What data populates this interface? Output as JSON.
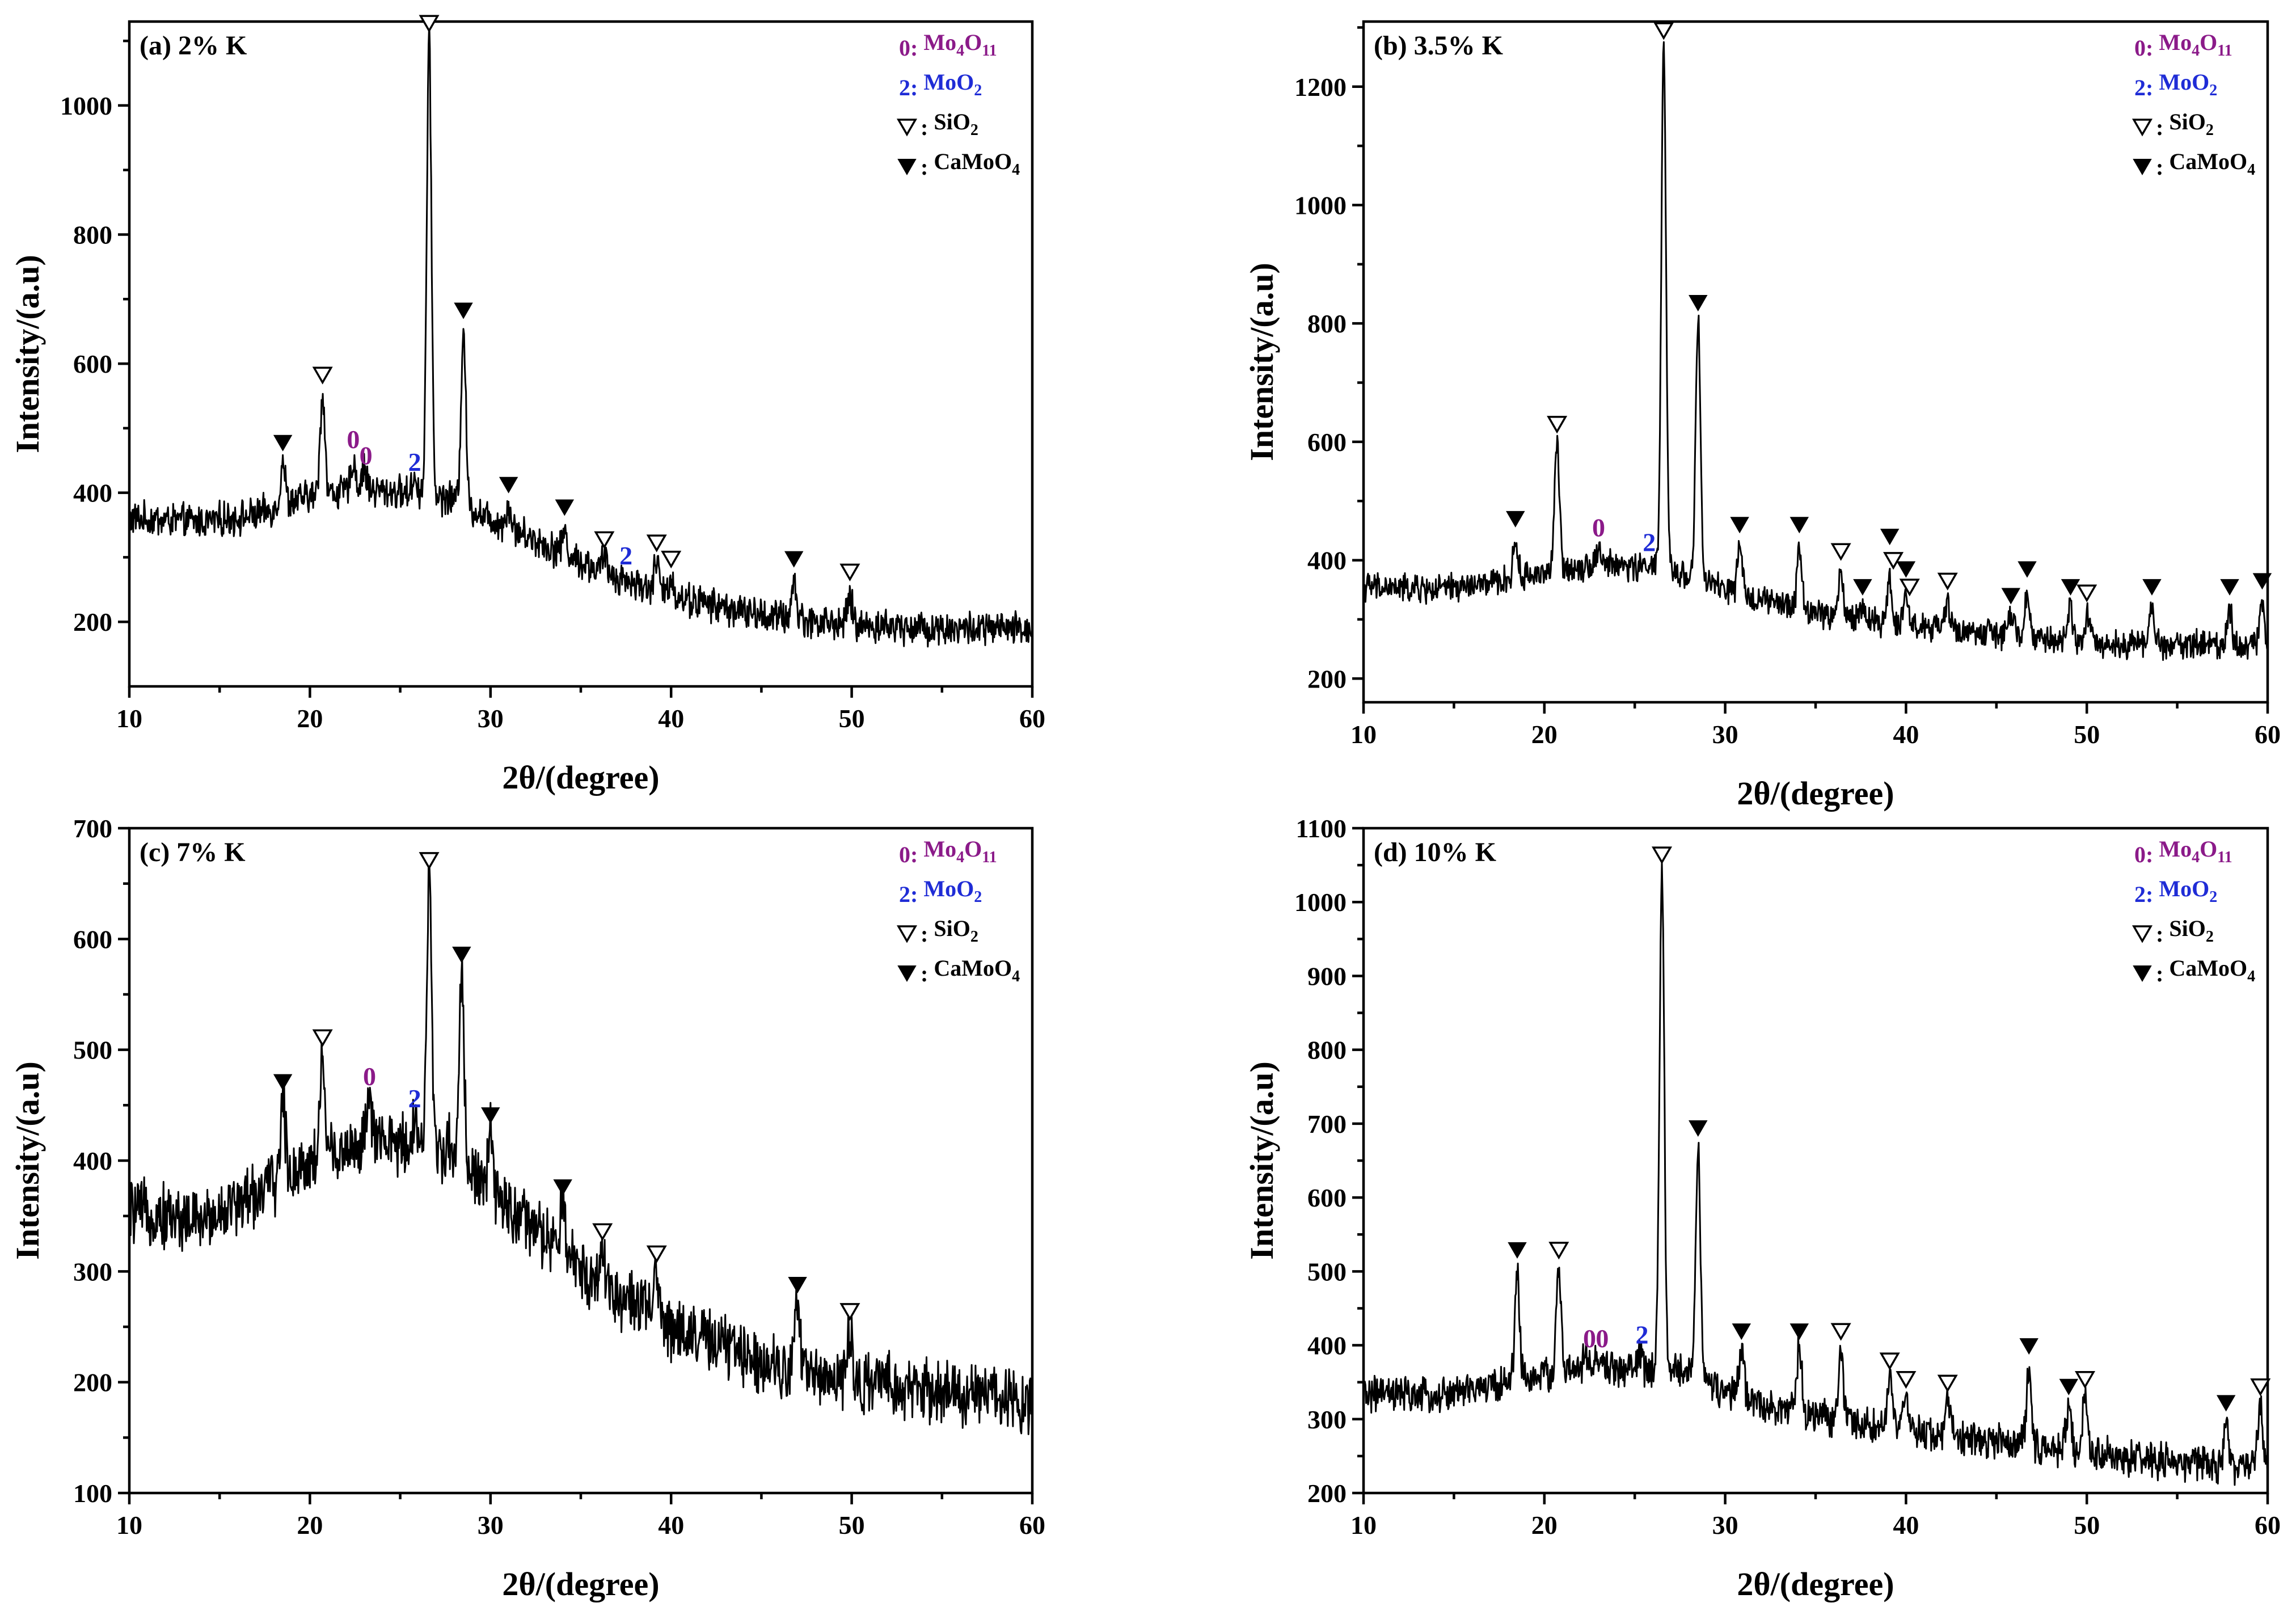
{
  "chart_data": [
    {
      "type": "line",
      "panel_label": "(a) 2% K",
      "xlabel": "2θ/(degree)",
      "ylabel": "Intensity/(a.u)",
      "xlim": [
        10,
        60
      ],
      "ylim": [
        100,
        1130
      ],
      "yticks": [
        200,
        400,
        600,
        800,
        1000
      ],
      "xticks": [
        10,
        20,
        30,
        40,
        50,
        60
      ],
      "baseline": [
        [
          10,
          360
        ],
        [
          14,
          355
        ],
        [
          17,
          365
        ],
        [
          20,
          395
        ],
        [
          23,
          405
        ],
        [
          26,
          398
        ],
        [
          28,
          390
        ],
        [
          30,
          360
        ],
        [
          33,
          320
        ],
        [
          36,
          280
        ],
        [
          40,
          240
        ],
        [
          45,
          210
        ],
        [
          50,
          195
        ],
        [
          55,
          190
        ],
        [
          60,
          188
        ]
      ],
      "noise": 22,
      "peaks": [
        {
          "x": 18.5,
          "y": 450
        },
        {
          "x": 20.7,
          "y": 555
        },
        {
          "x": 22.4,
          "y": 450
        },
        {
          "x": 23.0,
          "y": 440
        },
        {
          "x": 25.8,
          "y": 425
        },
        {
          "x": 26.6,
          "y": 1100
        },
        {
          "x": 28.5,
          "y": 655
        },
        {
          "x": 31.0,
          "y": 380
        },
        {
          "x": 34.1,
          "y": 340
        },
        {
          "x": 36.3,
          "y": 300
        },
        {
          "x": 37.5,
          "y": 265
        },
        {
          "x": 39.2,
          "y": 295
        },
        {
          "x": 40.0,
          "y": 270
        },
        {
          "x": 46.8,
          "y": 265
        },
        {
          "x": 49.9,
          "y": 240
        }
      ],
      "markers": [
        {
          "x": 18.5,
          "y": 450,
          "kind": "CaMoO4"
        },
        {
          "x": 20.7,
          "y": 555,
          "kind": "SiO2"
        },
        {
          "x": 22.4,
          "y": 455,
          "kind": "Mo4O11"
        },
        {
          "x": 23.1,
          "y": 430,
          "kind": "Mo4O11"
        },
        {
          "x": 25.8,
          "y": 420,
          "kind": "MoO2"
        },
        {
          "x": 26.6,
          "y": 1100,
          "kind": "SiO2"
        },
        {
          "x": 28.5,
          "y": 655,
          "kind": "CaMoO4"
        },
        {
          "x": 31.0,
          "y": 385,
          "kind": "CaMoO4"
        },
        {
          "x": 34.1,
          "y": 350,
          "kind": "CaMoO4"
        },
        {
          "x": 36.3,
          "y": 300,
          "kind": "SiO2"
        },
        {
          "x": 37.5,
          "y": 275,
          "kind": "MoO2"
        },
        {
          "x": 39.2,
          "y": 295,
          "kind": "SiO2"
        },
        {
          "x": 40.0,
          "y": 270,
          "kind": "SiO2"
        },
        {
          "x": 46.8,
          "y": 270,
          "kind": "CaMoO4"
        },
        {
          "x": 49.9,
          "y": 250,
          "kind": "SiO2"
        }
      ]
    },
    {
      "type": "line",
      "panel_label": "(b) 3.5% K",
      "xlabel": "2θ/(degree)",
      "ylabel": "Intensity/(a.u)",
      "xlim": [
        10,
        60
      ],
      "ylim": [
        160,
        1310
      ],
      "yticks": [
        200,
        400,
        600,
        800,
        1000,
        1200
      ],
      "xticks": [
        10,
        20,
        30,
        40,
        50,
        60
      ],
      "baseline": [
        [
          10,
          355
        ],
        [
          14,
          350
        ],
        [
          17,
          360
        ],
        [
          20,
          380
        ],
        [
          23,
          395
        ],
        [
          26,
          385
        ],
        [
          28,
          375
        ],
        [
          30,
          350
        ],
        [
          33,
          325
        ],
        [
          36,
          305
        ],
        [
          40,
          290
        ],
        [
          45,
          275
        ],
        [
          50,
          260
        ],
        [
          55,
          258
        ],
        [
          60,
          258
        ]
      ],
      "noise": 20,
      "peaks": [
        {
          "x": 18.4,
          "y": 430
        },
        {
          "x": 20.7,
          "y": 600
        },
        {
          "x": 23.0,
          "y": 420
        },
        {
          "x": 25.8,
          "y": 400
        },
        {
          "x": 26.6,
          "y": 1265
        },
        {
          "x": 28.5,
          "y": 805
        },
        {
          "x": 30.8,
          "y": 420
        },
        {
          "x": 34.1,
          "y": 420
        },
        {
          "x": 36.4,
          "y": 380
        },
        {
          "x": 37.6,
          "y": 325
        },
        {
          "x": 39.1,
          "y": 370
        },
        {
          "x": 40.0,
          "y": 345
        },
        {
          "x": 42.3,
          "y": 330
        },
        {
          "x": 45.8,
          "y": 310
        },
        {
          "x": 46.7,
          "y": 340
        },
        {
          "x": 49.1,
          "y": 320
        },
        {
          "x": 50.0,
          "y": 310
        },
        {
          "x": 53.6,
          "y": 320
        },
        {
          "x": 57.9,
          "y": 320
        },
        {
          "x": 59.7,
          "y": 330
        }
      ],
      "markers": [
        {
          "x": 18.4,
          "y": 440,
          "kind": "CaMoO4"
        },
        {
          "x": 20.7,
          "y": 600,
          "kind": "SiO2"
        },
        {
          "x": 23.0,
          "y": 425,
          "kind": "Mo4O11"
        },
        {
          "x": 25.8,
          "y": 400,
          "kind": "MoO2"
        },
        {
          "x": 26.6,
          "y": 1265,
          "kind": "SiO2"
        },
        {
          "x": 28.5,
          "y": 805,
          "kind": "CaMoO4"
        },
        {
          "x": 30.8,
          "y": 430,
          "kind": "CaMoO4"
        },
        {
          "x": 34.1,
          "y": 430,
          "kind": "CaMoO4"
        },
        {
          "x": 36.4,
          "y": 385,
          "kind": "SiO2"
        },
        {
          "x": 37.6,
          "y": 325,
          "kind": "CaMoO4"
        },
        {
          "x": 39.1,
          "y": 410,
          "kind": "CaMoO4"
        },
        {
          "x": 39.3,
          "y": 370,
          "kind": "SiO2"
        },
        {
          "x": 40.0,
          "y": 355,
          "kind": "CaMoO4"
        },
        {
          "x": 40.2,
          "y": 325,
          "kind": "SiO2"
        },
        {
          "x": 42.3,
          "y": 335,
          "kind": "SiO2"
        },
        {
          "x": 45.8,
          "y": 310,
          "kind": "CaMoO4"
        },
        {
          "x": 46.7,
          "y": 355,
          "kind": "CaMoO4"
        },
        {
          "x": 49.1,
          "y": 325,
          "kind": "CaMoO4"
        },
        {
          "x": 50.0,
          "y": 315,
          "kind": "SiO2"
        },
        {
          "x": 53.6,
          "y": 325,
          "kind": "CaMoO4"
        },
        {
          "x": 57.9,
          "y": 325,
          "kind": "CaMoO4"
        },
        {
          "x": 59.7,
          "y": 335,
          "kind": "CaMoO4"
        }
      ]
    },
    {
      "type": "line",
      "panel_label": "(c) 7% K",
      "xlabel": "2θ/(degree)",
      "ylabel": "Intensity/(a.u)",
      "xlim": [
        10,
        60
      ],
      "ylim": [
        100,
        700
      ],
      "yticks": [
        100,
        200,
        300,
        400,
        500,
        600,
        700
      ],
      "xticks": [
        10,
        20,
        30,
        40,
        50,
        60
      ],
      "baseline": [
        [
          10,
          355
        ],
        [
          14,
          345
        ],
        [
          17,
          370
        ],
        [
          20,
          400
        ],
        [
          23,
          415
        ],
        [
          26,
          415
        ],
        [
          28,
          410
        ],
        [
          30,
          370
        ],
        [
          33,
          330
        ],
        [
          36,
          290
        ],
        [
          40,
          250
        ],
        [
          45,
          220
        ],
        [
          50,
          200
        ],
        [
          55,
          190
        ],
        [
          60,
          185
        ]
      ],
      "noise": 24,
      "peaks": [
        {
          "x": 18.5,
          "y": 455
        },
        {
          "x": 20.7,
          "y": 495
        },
        {
          "x": 23.3,
          "y": 455
        },
        {
          "x": 25.8,
          "y": 440
        },
        {
          "x": 26.6,
          "y": 655
        },
        {
          "x": 28.4,
          "y": 570
        },
        {
          "x": 30.0,
          "y": 420
        },
        {
          "x": 34.0,
          "y": 360
        },
        {
          "x": 36.2,
          "y": 320
        },
        {
          "x": 39.2,
          "y": 300
        },
        {
          "x": 47.0,
          "y": 270
        },
        {
          "x": 49.9,
          "y": 245
        }
      ],
      "markers": [
        {
          "x": 18.5,
          "y": 455,
          "kind": "CaMoO4"
        },
        {
          "x": 20.7,
          "y": 495,
          "kind": "SiO2"
        },
        {
          "x": 23.3,
          "y": 460,
          "kind": "Mo4O11"
        },
        {
          "x": 25.8,
          "y": 440,
          "kind": "MoO2"
        },
        {
          "x": 26.6,
          "y": 655,
          "kind": "SiO2"
        },
        {
          "x": 28.4,
          "y": 570,
          "kind": "CaMoO4"
        },
        {
          "x": 30.0,
          "y": 425,
          "kind": "CaMoO4"
        },
        {
          "x": 34.0,
          "y": 360,
          "kind": "CaMoO4"
        },
        {
          "x": 36.2,
          "y": 320,
          "kind": "SiO2"
        },
        {
          "x": 39.2,
          "y": 300,
          "kind": "SiO2"
        },
        {
          "x": 47.0,
          "y": 272,
          "kind": "CaMoO4"
        },
        {
          "x": 49.9,
          "y": 248,
          "kind": "SiO2"
        }
      ]
    },
    {
      "type": "line",
      "panel_label": "(d) 10% K",
      "xlabel": "2θ/(degree)",
      "ylabel": "Intensity/(a.u)",
      "xlim": [
        10,
        60
      ],
      "ylim": [
        200,
        1100
      ],
      "yticks": [
        200,
        300,
        400,
        500,
        600,
        700,
        800,
        900,
        1000,
        1100
      ],
      "xticks": [
        10,
        20,
        30,
        40,
        50,
        60
      ],
      "baseline": [
        [
          10,
          335
        ],
        [
          14,
          330
        ],
        [
          17,
          345
        ],
        [
          20,
          360
        ],
        [
          23,
          370
        ],
        [
          26,
          365
        ],
        [
          28,
          365
        ],
        [
          30,
          335
        ],
        [
          33,
          315
        ],
        [
          36,
          300
        ],
        [
          40,
          285
        ],
        [
          45,
          270
        ],
        [
          50,
          255
        ],
        [
          55,
          240
        ],
        [
          60,
          235
        ]
      ],
      "noise": 20,
      "peaks": [
        {
          "x": 18.5,
          "y": 500
        },
        {
          "x": 20.8,
          "y": 505
        },
        {
          "x": 22.3,
          "y": 385
        },
        {
          "x": 23.0,
          "y": 385
        },
        {
          "x": 25.3,
          "y": 390
        },
        {
          "x": 26.5,
          "y": 1040
        },
        {
          "x": 28.5,
          "y": 670
        },
        {
          "x": 30.9,
          "y": 395
        },
        {
          "x": 34.1,
          "y": 395
        },
        {
          "x": 36.4,
          "y": 395
        },
        {
          "x": 39.1,
          "y": 355
        },
        {
          "x": 40.0,
          "y": 330
        },
        {
          "x": 42.3,
          "y": 325
        },
        {
          "x": 46.8,
          "y": 370
        },
        {
          "x": 49.0,
          "y": 320
        },
        {
          "x": 49.9,
          "y": 330
        },
        {
          "x": 57.7,
          "y": 300
        },
        {
          "x": 59.6,
          "y": 320
        }
      ],
      "markers": [
        {
          "x": 18.5,
          "y": 505,
          "kind": "CaMoO4"
        },
        {
          "x": 20.8,
          "y": 505,
          "kind": "SiO2"
        },
        {
          "x": 22.5,
          "y": 385,
          "kind": "Mo4O11"
        },
        {
          "x": 23.2,
          "y": 385,
          "kind": "Mo4O11"
        },
        {
          "x": 25.4,
          "y": 390,
          "kind": "MoO2"
        },
        {
          "x": 26.5,
          "y": 1040,
          "kind": "SiO2"
        },
        {
          "x": 28.5,
          "y": 670,
          "kind": "CaMoO4"
        },
        {
          "x": 30.9,
          "y": 395,
          "kind": "CaMoO4"
        },
        {
          "x": 34.1,
          "y": 395,
          "kind": "CaMoO4"
        },
        {
          "x": 36.4,
          "y": 395,
          "kind": "SiO2"
        },
        {
          "x": 39.1,
          "y": 355,
          "kind": "SiO2"
        },
        {
          "x": 40.0,
          "y": 330,
          "kind": "SiO2"
        },
        {
          "x": 42.3,
          "y": 325,
          "kind": "SiO2"
        },
        {
          "x": 46.8,
          "y": 375,
          "kind": "CaMoO4"
        },
        {
          "x": 49.0,
          "y": 320,
          "kind": "CaMoO4"
        },
        {
          "x": 49.9,
          "y": 330,
          "kind": "SiO2"
        },
        {
          "x": 57.7,
          "y": 298,
          "kind": "CaMoO4"
        },
        {
          "x": 59.6,
          "y": 320,
          "kind": "SiO2"
        }
      ]
    }
  ],
  "legend": [
    {
      "kind": "Mo4O11",
      "symbol": "0",
      "label": "Mo4O11",
      "text_color": "#8b1a89"
    },
    {
      "kind": "MoO2",
      "symbol": "2",
      "label": "MoO2",
      "text_color": "#1f2cd6"
    },
    {
      "kind": "SiO2",
      "symbol": "open-triangle",
      "label": "SiO2",
      "text_color": "#000000"
    },
    {
      "kind": "CaMoO4",
      "symbol": "filled-triangle",
      "label": "CaMoO4",
      "text_color": "#000000"
    }
  ],
  "marker_text": {
    "Mo4O11": "0",
    "MoO2": "2"
  },
  "colors": {
    "Mo4O11": "#8b1a89",
    "MoO2": "#1f2cd6",
    "line": "#000000"
  }
}
